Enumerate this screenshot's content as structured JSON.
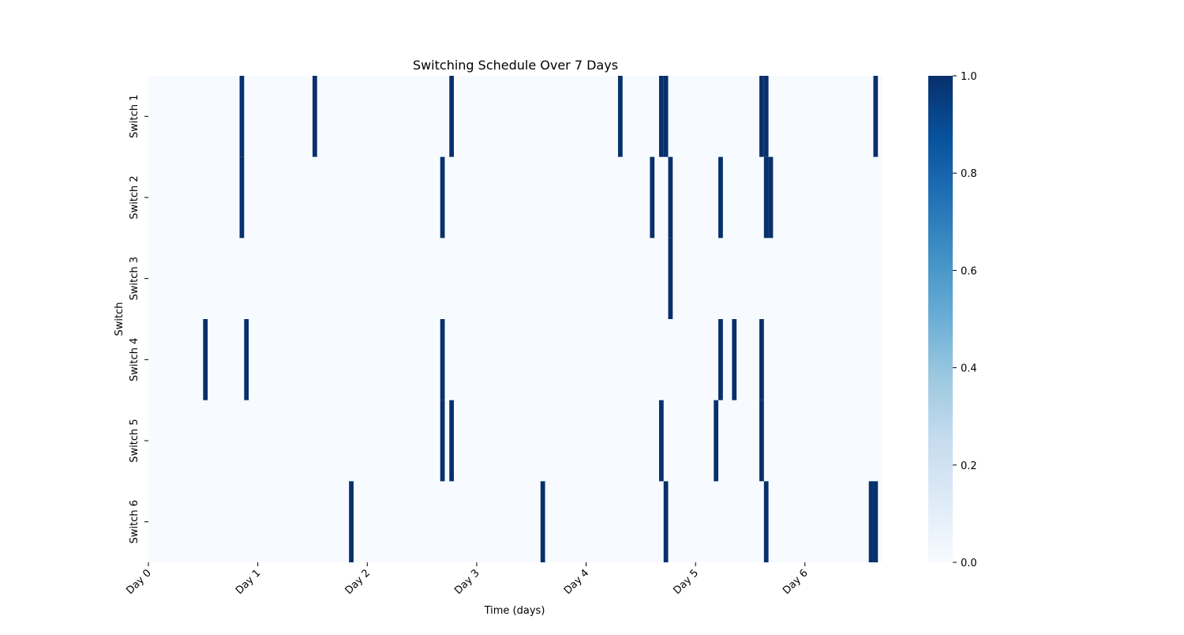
{
  "chart_data": {
    "type": "heatmap",
    "title": "Switching Schedule Over 7 Days",
    "xlabel": "Time (days)",
    "ylabel": "Switch",
    "x_unit": "hours",
    "x_range": [
      0,
      161
    ],
    "x_ticks": [
      {
        "value": 0,
        "label": "Day 0"
      },
      {
        "value": 24,
        "label": "Day 1"
      },
      {
        "value": 48,
        "label": "Day 2"
      },
      {
        "value": 72,
        "label": "Day 3"
      },
      {
        "value": 96,
        "label": "Day 4"
      },
      {
        "value": 120,
        "label": "Day 5"
      },
      {
        "value": 144,
        "label": "Day 6"
      }
    ],
    "rows": [
      {
        "label": "Switch 1",
        "on_hours": [
          20,
          36,
          66,
          103,
          112,
          113,
          134,
          135,
          159
        ]
      },
      {
        "label": "Switch 2",
        "on_hours": [
          20,
          64,
          110,
          114,
          125,
          135,
          136
        ]
      },
      {
        "label": "Switch 3",
        "on_hours": [
          114
        ]
      },
      {
        "label": "Switch 4",
        "on_hours": [
          12,
          21,
          64,
          125,
          128,
          134
        ]
      },
      {
        "label": "Switch 5",
        "on_hours": [
          64,
          66,
          112,
          124,
          134
        ]
      },
      {
        "label": "Switch 6",
        "on_hours": [
          44,
          86,
          113,
          135,
          158,
          159
        ]
      }
    ],
    "value_range": [
      0,
      1
    ],
    "colorbar": {
      "ticks": [
        "0.0",
        "0.2",
        "0.4",
        "0.6",
        "0.8",
        "1.0"
      ],
      "colormap": "Blues",
      "low_color": "#f7fbff",
      "high_color": "#08306b"
    },
    "grid": false,
    "legend": "colorbar-right"
  }
}
